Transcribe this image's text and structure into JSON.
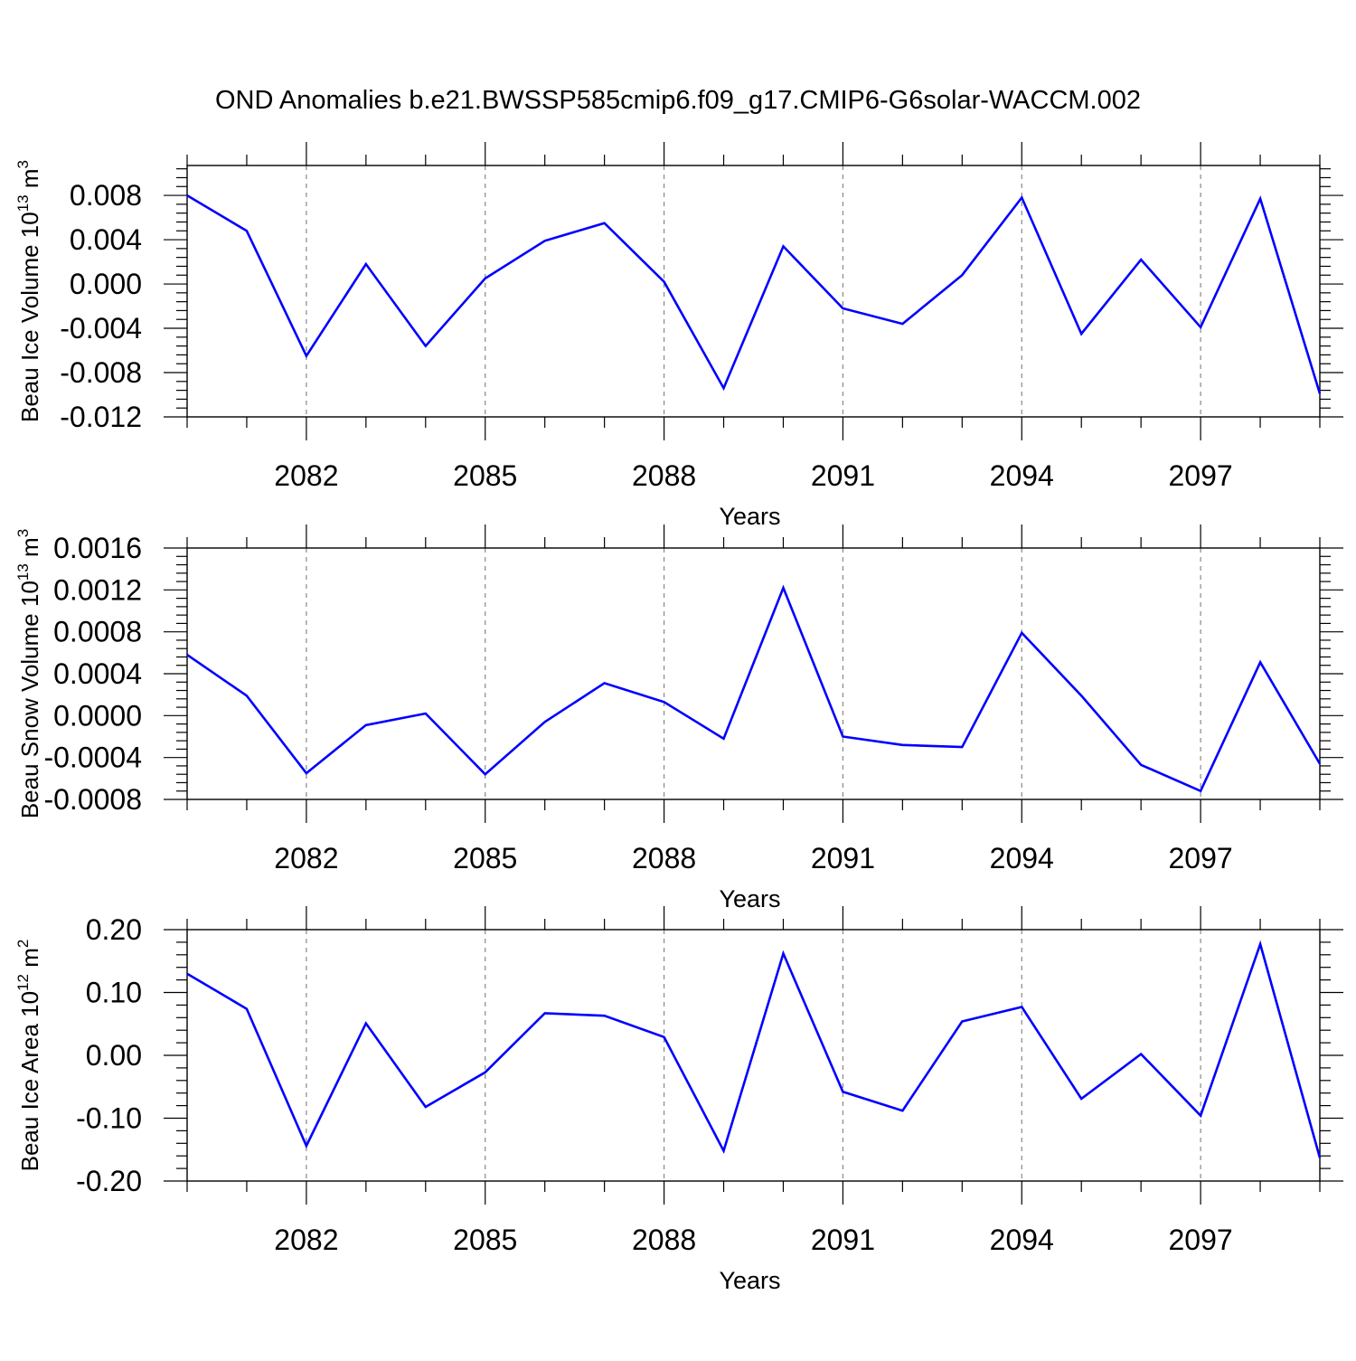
{
  "title": "OND Anomalies b.e21.BWSSP585cmip6.f09_g17.CMIP6-G6solar-WACCM.002",
  "line_color": "#0000ff",
  "chart_data": [
    {
      "type": "line",
      "ylabel_main": "Beau Ice Volume 10",
      "ylabel_sup": "13",
      "ylabel_unit": " m",
      "ylabel_unit_sup": "3",
      "xlabel": "Years",
      "xlim": [
        2080,
        2099
      ],
      "ylim": [
        -0.012,
        0.0107
      ],
      "x_ticks": [
        2082,
        2085,
        2088,
        2091,
        2094,
        2097
      ],
      "x_ticklabels": [
        "2082",
        "2085",
        "2088",
        "2091",
        "2094",
        "2097"
      ],
      "y_ticks": [
        -0.012,
        -0.008,
        -0.004,
        0.0,
        0.004,
        0.008
      ],
      "y_ticklabels": [
        "-0.012",
        "-0.008",
        "-0.004",
        "0.000",
        "0.004",
        "0.008"
      ],
      "grid": "vertical dashed at major x ticks",
      "x": [
        2080,
        2081,
        2082,
        2083,
        2084,
        2085,
        2086,
        2087,
        2088,
        2089,
        2090,
        2091,
        2092,
        2093,
        2094,
        2095,
        2096,
        2097,
        2098,
        2099
      ],
      "y": [
        0.008,
        0.0048,
        -0.0065,
        0.0018,
        -0.0056,
        0.0005,
        0.0039,
        0.0055,
        0.0002,
        -0.0094,
        0.0034,
        -0.0022,
        -0.0036,
        0.0008,
        0.0078,
        -0.0045,
        0.0022,
        -0.0039,
        0.0077,
        -0.0099
      ]
    },
    {
      "type": "line",
      "ylabel_main": "Beau Snow Volume 10",
      "ylabel_sup": "13",
      "ylabel_unit": " m",
      "ylabel_unit_sup": "3",
      "xlabel": "Years",
      "xlim": [
        2080,
        2099
      ],
      "ylim": [
        -0.0008,
        0.0016
      ],
      "x_ticks": [
        2082,
        2085,
        2088,
        2091,
        2094,
        2097
      ],
      "x_ticklabels": [
        "2082",
        "2085",
        "2088",
        "2091",
        "2094",
        "2097"
      ],
      "y_ticks": [
        -0.0008,
        -0.0004,
        0.0,
        0.0004,
        0.0008,
        0.0012,
        0.0016
      ],
      "y_ticklabels": [
        "-0.0008",
        "-0.0004",
        "0.0000",
        "0.0004",
        "0.0008",
        "0.0012",
        "0.0016"
      ],
      "grid": "vertical dashed at major x ticks",
      "x": [
        2080,
        2081,
        2082,
        2083,
        2084,
        2085,
        2086,
        2087,
        2088,
        2089,
        2090,
        2091,
        2092,
        2093,
        2094,
        2095,
        2096,
        2097,
        2098,
        2099
      ],
      "y": [
        0.00058,
        0.00019,
        -0.00055,
        -9e-05,
        2e-05,
        -0.00056,
        -6e-05,
        0.00031,
        0.00013,
        -0.00022,
        0.00122,
        -0.0002,
        -0.00028,
        -0.0003,
        0.00079,
        0.00019,
        -0.00047,
        -0.00072,
        0.00051,
        -0.00046
      ]
    },
    {
      "type": "line",
      "ylabel_main": "Beau Ice Area 10",
      "ylabel_sup": "12",
      "ylabel_unit": " m",
      "ylabel_unit_sup": "2",
      "xlabel": "Years",
      "xlim": [
        2080,
        2099
      ],
      "ylim": [
        -0.2,
        0.2
      ],
      "x_ticks": [
        2082,
        2085,
        2088,
        2091,
        2094,
        2097
      ],
      "x_ticklabels": [
        "2082",
        "2085",
        "2088",
        "2091",
        "2094",
        "2097"
      ],
      "y_ticks": [
        -0.2,
        -0.1,
        0.0,
        0.1,
        0.2
      ],
      "y_ticklabels": [
        "-0.20",
        "-0.10",
        "0.00",
        "0.10",
        "0.20"
      ],
      "grid": "vertical dashed at major x ticks",
      "x": [
        2080,
        2081,
        2082,
        2083,
        2084,
        2085,
        2086,
        2087,
        2088,
        2089,
        2090,
        2091,
        2092,
        2093,
        2094,
        2095,
        2096,
        2097,
        2098,
        2099
      ],
      "y": [
        0.13,
        0.074,
        -0.144,
        0.051,
        -0.082,
        -0.027,
        0.067,
        0.063,
        0.029,
        -0.152,
        0.162,
        -0.058,
        -0.088,
        0.054,
        0.077,
        -0.069,
        0.002,
        -0.096,
        0.177,
        -0.163
      ]
    }
  ]
}
